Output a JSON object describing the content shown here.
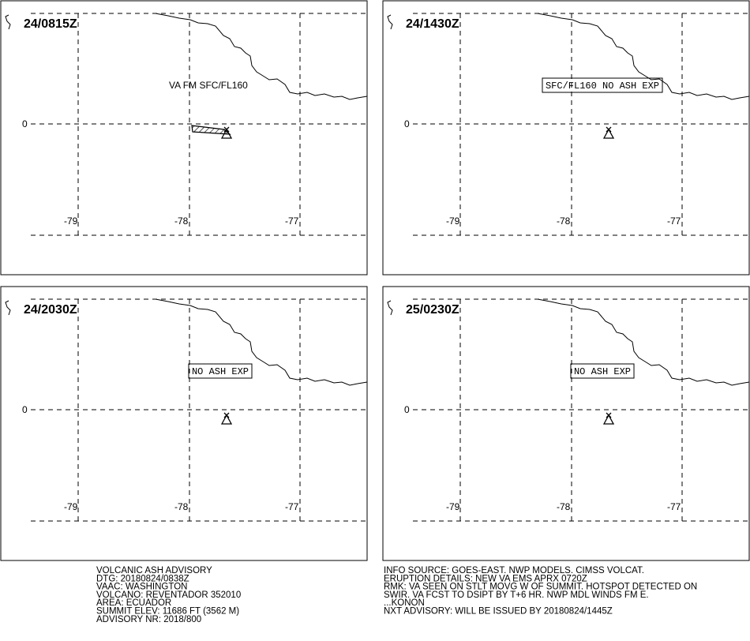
{
  "panels": [
    {
      "time": "24/0815Z",
      "label": "VA FM SFC/FL160",
      "boxed": false
    },
    {
      "time": "24/1430Z",
      "label": "SFC/FL160 NO ASH EXP",
      "boxed": true
    },
    {
      "time": "24/2030Z",
      "label": "NO ASH EXP",
      "boxed": true
    },
    {
      "time": "25/0230Z",
      "label": "NO ASH EXP",
      "boxed": true
    }
  ],
  "grid": {
    "lat": "0",
    "lon": [
      "-79",
      "-78",
      "-77"
    ]
  },
  "advisory_left": [
    "VOLCANIC ASH ADVISORY",
    "DTG: 20180824/0838Z",
    "VAAC: WASHINGTON",
    "VOLCANO: REVENTADOR 352010",
    "AREA: ECUADOR",
    "SUMMIT ELEV: 11686 FT (3562 M)",
    "ADVISORY NR: 2018/800"
  ],
  "advisory_right": [
    "INFO SOURCE: GOES-EAST. NWP MODELS. CIMSS VOLCAT.",
    "ERUPTION DETAILS: NEW VA EMS APRX 0720Z",
    "RMK: VA SEEN ON STLT MOVG W OF SUMMIT. HOTSPOT DETECTED ON",
    "SWIR. VA FCST TO DSIPT BY T+6 HR. NWP MDL WINDS FM E.",
    "...KONON",
    "NXT ADVISORY: WILL BE ISSUED BY 20180824/1445Z"
  ]
}
